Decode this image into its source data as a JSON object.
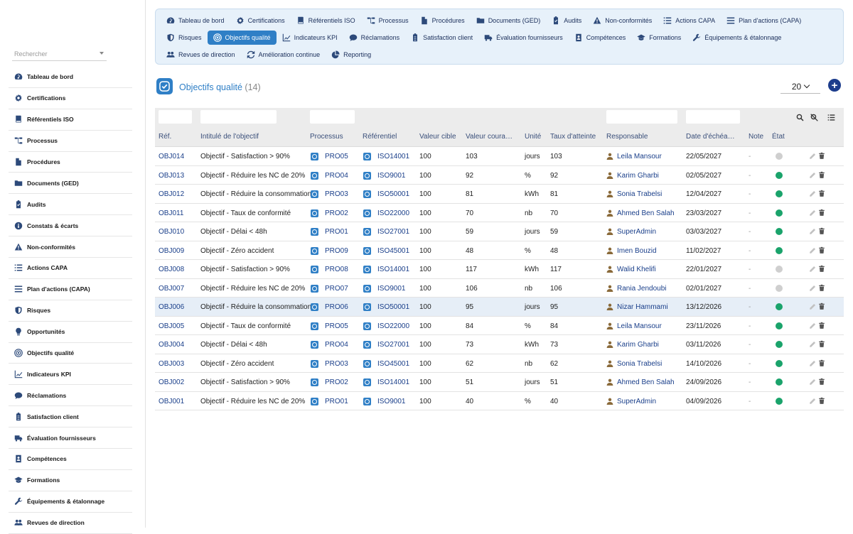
{
  "sidebar": {
    "search_placeholder": "Rechercher",
    "items": [
      {
        "label": "Tableau de bord",
        "icon": "dashboard-icon"
      },
      {
        "label": "Certifications",
        "icon": "gear-icon"
      },
      {
        "label": "Référentiels ISO",
        "icon": "book-icon"
      },
      {
        "label": "Processus",
        "icon": "sitemap-icon"
      },
      {
        "label": "Procédures",
        "icon": "file-icon"
      },
      {
        "label": "Documents (GED)",
        "icon": "folder-icon"
      },
      {
        "label": "Audits",
        "icon": "clipboard-check-icon"
      },
      {
        "label": "Constats & écarts",
        "icon": "info-circle-icon"
      },
      {
        "label": "Non-conformités",
        "icon": "warning-triangle-icon"
      },
      {
        "label": "Actions CAPA",
        "icon": "list-icon"
      },
      {
        "label": "Plan d'actions (CAPA)",
        "icon": "bars-icon"
      },
      {
        "label": "Risques",
        "icon": "shield-icon"
      },
      {
        "label": "Opportunités",
        "icon": "lightbulb-icon"
      },
      {
        "label": "Objectifs qualité",
        "icon": "target-icon"
      },
      {
        "label": "Indicateurs KPI",
        "icon": "chart-line-icon"
      },
      {
        "label": "Réclamations",
        "icon": "comment-icon"
      },
      {
        "label": "Satisfaction client",
        "icon": "clipboard-icon"
      },
      {
        "label": "Évaluation fournisseurs",
        "icon": "truck-icon"
      },
      {
        "label": "Compétences",
        "icon": "id-badge-icon"
      },
      {
        "label": "Formations",
        "icon": "graduation-cap-icon"
      },
      {
        "label": "Équipements & étalonnage",
        "icon": "tools-icon"
      },
      {
        "label": "Revues de direction",
        "icon": "users-icon"
      }
    ]
  },
  "topnav": {
    "rows": [
      [
        {
          "label": "Tableau de bord",
          "icon": "dashboard-icon"
        },
        {
          "label": "Certifications",
          "icon": "gear-icon"
        },
        {
          "label": "Référentiels ISO",
          "icon": "book-icon"
        },
        {
          "label": "Processus",
          "icon": "sitemap-icon"
        },
        {
          "label": "Procédures",
          "icon": "file-icon"
        },
        {
          "label": "Documents (GED)",
          "icon": "folder-icon"
        },
        {
          "label": "Audits",
          "icon": "clipboard-check-icon"
        },
        {
          "label": "Non-conformités",
          "icon": "warning-triangle-icon"
        },
        {
          "label": "Actions CAPA",
          "icon": "list-icon"
        },
        {
          "label": "Plan d'actions (CAPA)",
          "icon": "bars-icon"
        }
      ],
      [
        {
          "label": "Risques",
          "icon": "shield-icon"
        },
        {
          "label": "Objectifs qualité",
          "icon": "target-icon",
          "active": true
        },
        {
          "label": "Indicateurs KPI",
          "icon": "chart-line-icon"
        },
        {
          "label": "Réclamations",
          "icon": "comment-icon"
        },
        {
          "label": "Satisfaction client",
          "icon": "clipboard-icon"
        },
        {
          "label": "Évaluation fournisseurs",
          "icon": "truck-icon"
        },
        {
          "label": "Compétences",
          "icon": "id-badge-icon"
        },
        {
          "label": "Formations",
          "icon": "graduation-cap-icon"
        },
        {
          "label": "Équipements & étalonnage",
          "icon": "tools-icon"
        }
      ],
      [
        {
          "label": "Revues de direction",
          "icon": "users-icon"
        },
        {
          "label": "Amélioration continue",
          "icon": "sync-icon"
        },
        {
          "label": "Reporting",
          "icon": "pie-chart-icon"
        }
      ]
    ]
  },
  "page": {
    "title": "Objectifs qualité",
    "count": "(14)",
    "per_page": "20",
    "add_label": "+"
  },
  "table": {
    "headers": {
      "ref": "Réf.",
      "intitule": "Intitulé de l'objectif",
      "processus": "Processus",
      "referentiel": "Référentiel",
      "cible": "Valeur cible",
      "courante": "Valeur coura…",
      "unite": "Unité",
      "taux": "Taux d'atteinte",
      "responsable": "Responsable",
      "echeance": "Date d'échéa…",
      "note": "Note",
      "etat": "État"
    },
    "status_colors": {
      "green": "#1aa36b",
      "grey": "#cfcfcf"
    },
    "rows": [
      {
        "ref": "OBJ014",
        "intitule": "Objectif - Satisfaction > 90%",
        "processus": "PRO05",
        "referentiel": "ISO14001",
        "cible": "100",
        "courante": "103",
        "unite": "jours",
        "taux": "103",
        "responsable": "Leila Mansour",
        "echeance": "22/05/2027",
        "note": "-",
        "etat": "grey"
      },
      {
        "ref": "OBJ013",
        "intitule": "Objectif - Réduire les NC de 20%",
        "processus": "PRO04",
        "referentiel": "ISO9001",
        "cible": "100",
        "courante": "92",
        "unite": "%",
        "taux": "92",
        "responsable": "Karim Gharbi",
        "echeance": "02/05/2027",
        "note": "-",
        "etat": "green"
      },
      {
        "ref": "OBJ012",
        "intitule": "Objectif - Réduire la consommation",
        "processus": "PRO03",
        "referentiel": "ISO50001",
        "cible": "100",
        "courante": "81",
        "unite": "kWh",
        "taux": "81",
        "responsable": "Sonia Trabelsi",
        "echeance": "12/04/2027",
        "note": "-",
        "etat": "green"
      },
      {
        "ref": "OBJ011",
        "intitule": "Objectif - Taux de conformité",
        "processus": "PRO02",
        "referentiel": "ISO22000",
        "cible": "100",
        "courante": "70",
        "unite": "nb",
        "taux": "70",
        "responsable": "Ahmed Ben Salah",
        "echeance": "23/03/2027",
        "note": "-",
        "etat": "green"
      },
      {
        "ref": "OBJ010",
        "intitule": "Objectif - Délai < 48h",
        "processus": "PRO01",
        "referentiel": "ISO27001",
        "cible": "100",
        "courante": "59",
        "unite": "jours",
        "taux": "59",
        "responsable": "SuperAdmin",
        "echeance": "03/03/2027",
        "note": "-",
        "etat": "green"
      },
      {
        "ref": "OBJ009",
        "intitule": "Objectif - Zéro accident",
        "processus": "PRO09",
        "referentiel": "ISO45001",
        "cible": "100",
        "courante": "48",
        "unite": "%",
        "taux": "48",
        "responsable": "Imen Bouzid",
        "echeance": "11/02/2027",
        "note": "-",
        "etat": "green"
      },
      {
        "ref": "OBJ008",
        "intitule": "Objectif - Satisfaction > 90%",
        "processus": "PRO08",
        "referentiel": "ISO14001",
        "cible": "100",
        "courante": "117",
        "unite": "kWh",
        "taux": "117",
        "responsable": "Walid Khelifi",
        "echeance": "22/01/2027",
        "note": "-",
        "etat": "grey"
      },
      {
        "ref": "OBJ007",
        "intitule": "Objectif - Réduire les NC de 20%",
        "processus": "PRO07",
        "referentiel": "ISO9001",
        "cible": "100",
        "courante": "106",
        "unite": "nb",
        "taux": "106",
        "responsable": "Rania Jendoubi",
        "echeance": "02/01/2027",
        "note": "-",
        "etat": "grey"
      },
      {
        "ref": "OBJ006",
        "intitule": "Objectif - Réduire la consommation",
        "processus": "PRO06",
        "referentiel": "ISO50001",
        "cible": "100",
        "courante": "95",
        "unite": "jours",
        "taux": "95",
        "responsable": "Nizar Hammami",
        "echeance": "13/12/2026",
        "note": "-",
        "etat": "green",
        "highlight": true
      },
      {
        "ref": "OBJ005",
        "intitule": "Objectif - Taux de conformité",
        "processus": "PRO05",
        "referentiel": "ISO22000",
        "cible": "100",
        "courante": "84",
        "unite": "%",
        "taux": "84",
        "responsable": "Leila Mansour",
        "echeance": "23/11/2026",
        "note": "-",
        "etat": "green"
      },
      {
        "ref": "OBJ004",
        "intitule": "Objectif - Délai < 48h",
        "processus": "PRO04",
        "referentiel": "ISO27001",
        "cible": "100",
        "courante": "73",
        "unite": "kWh",
        "taux": "73",
        "responsable": "Karim Gharbi",
        "echeance": "03/11/2026",
        "note": "-",
        "etat": "green"
      },
      {
        "ref": "OBJ003",
        "intitule": "Objectif - Zéro accident",
        "processus": "PRO03",
        "referentiel": "ISO45001",
        "cible": "100",
        "courante": "62",
        "unite": "nb",
        "taux": "62",
        "responsable": "Sonia Trabelsi",
        "echeance": "14/10/2026",
        "note": "-",
        "etat": "green"
      },
      {
        "ref": "OBJ002",
        "intitule": "Objectif - Satisfaction > 90%",
        "processus": "PRO02",
        "referentiel": "ISO14001",
        "cible": "100",
        "courante": "51",
        "unite": "jours",
        "taux": "51",
        "responsable": "Ahmed Ben Salah",
        "echeance": "24/09/2026",
        "note": "-",
        "etat": "green"
      },
      {
        "ref": "OBJ001",
        "intitule": "Objectif - Réduire les NC de 20%",
        "processus": "PRO01",
        "referentiel": "ISO9001",
        "cible": "100",
        "courante": "40",
        "unite": "%",
        "taux": "40",
        "responsable": "SuperAdmin",
        "echeance": "04/09/2026",
        "note": "-",
        "etat": "green"
      }
    ]
  }
}
